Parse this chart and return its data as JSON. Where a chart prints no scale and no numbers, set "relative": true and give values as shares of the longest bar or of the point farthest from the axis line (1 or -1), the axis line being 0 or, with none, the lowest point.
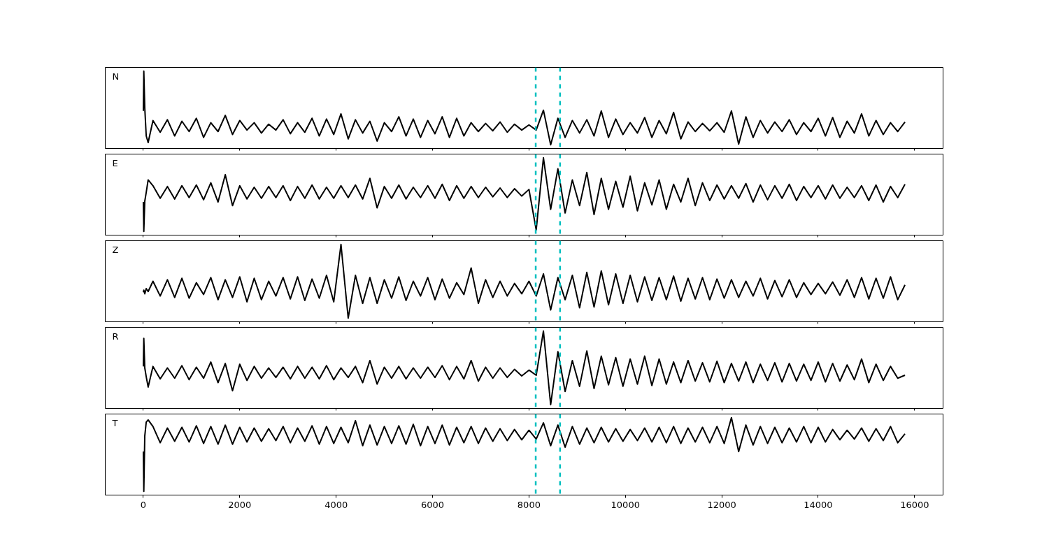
{
  "chart_data": [
    {
      "type": "line",
      "relative": true,
      "annotations": [
        "N"
      ],
      "xlim": [
        -790,
        16590
      ],
      "xticks": [
        0,
        2000,
        4000,
        6000,
        8000,
        10000,
        12000,
        14000,
        16000
      ],
      "tick_labels": false,
      "grid": false,
      "line_style": "solid",
      "ref_lines": [
        {
          "axis": "x",
          "value": 8140,
          "color": "#00bfbf",
          "line_style": "dashed"
        },
        {
          "axis": "x",
          "value": 8645,
          "color": "#00bfbf",
          "line_style": "dashed"
        }
      ],
      "x": [
        0,
        10,
        30,
        60,
        100,
        200,
        350,
        500,
        650,
        800,
        950,
        1100,
        1250,
        1400,
        1550,
        1700,
        1850,
        2000,
        2150,
        2300,
        2450,
        2600,
        2750,
        2900,
        3050,
        3200,
        3350,
        3500,
        3650,
        3800,
        3950,
        4100,
        4250,
        4400,
        4550,
        4700,
        4850,
        5000,
        5150,
        5300,
        5450,
        5600,
        5750,
        5900,
        6050,
        6200,
        6350,
        6500,
        6650,
        6800,
        6950,
        7100,
        7250,
        7400,
        7550,
        7700,
        7850,
        8000,
        8150,
        8300,
        8450,
        8600,
        8750,
        8900,
        9050,
        9200,
        9350,
        9500,
        9650,
        9800,
        9950,
        10100,
        10250,
        10400,
        10550,
        10700,
        10850,
        11000,
        11150,
        11300,
        11450,
        11600,
        11750,
        11900,
        12050,
        12200,
        12350,
        12500,
        12650,
        12800,
        12950,
        13100,
        13250,
        13400,
        13550,
        13700,
        13850,
        14000,
        14150,
        14300,
        14450,
        14600,
        14750,
        14900,
        15050,
        15200,
        15350,
        15500,
        15650,
        15800
      ],
      "series": [
        {
          "color": "#000000",
          "values": [
            0.46,
            1.0,
            0.5,
            0.12,
            0.03,
            0.33,
            0.17,
            0.34,
            0.12,
            0.32,
            0.18,
            0.36,
            0.1,
            0.3,
            0.18,
            0.4,
            0.14,
            0.33,
            0.2,
            0.3,
            0.16,
            0.28,
            0.2,
            0.34,
            0.15,
            0.3,
            0.17,
            0.36,
            0.12,
            0.35,
            0.14,
            0.42,
            0.08,
            0.34,
            0.16,
            0.32,
            0.05,
            0.3,
            0.18,
            0.38,
            0.12,
            0.35,
            0.1,
            0.33,
            0.15,
            0.38,
            0.1,
            0.36,
            0.12,
            0.3,
            0.18,
            0.29,
            0.19,
            0.31,
            0.17,
            0.28,
            0.2,
            0.27,
            0.2,
            0.47,
            0.0,
            0.36,
            0.1,
            0.33,
            0.16,
            0.34,
            0.12,
            0.46,
            0.1,
            0.35,
            0.14,
            0.3,
            0.16,
            0.37,
            0.1,
            0.33,
            0.15,
            0.44,
            0.08,
            0.31,
            0.18,
            0.29,
            0.19,
            0.3,
            0.17,
            0.46,
            0.01,
            0.38,
            0.1,
            0.33,
            0.16,
            0.31,
            0.18,
            0.34,
            0.14,
            0.3,
            0.18,
            0.36,
            0.12,
            0.37,
            0.1,
            0.32,
            0.16,
            0.42,
            0.12,
            0.33,
            0.14,
            0.3,
            0.18,
            0.31
          ]
        }
      ]
    },
    {
      "type": "line",
      "relative": true,
      "annotations": [
        "E"
      ],
      "xlim": [
        -790,
        16590
      ],
      "xticks": [
        0,
        2000,
        4000,
        6000,
        8000,
        10000,
        12000,
        14000,
        16000
      ],
      "tick_labels": false,
      "grid": false,
      "line_style": "solid",
      "ref_lines": [
        {
          "axis": "x",
          "value": 8140,
          "color": "#00bfbf",
          "line_style": "dashed"
        },
        {
          "axis": "x",
          "value": 8645,
          "color": "#00bfbf",
          "line_style": "dashed"
        }
      ],
      "x": [
        0,
        10,
        30,
        60,
        100,
        200,
        350,
        500,
        650,
        800,
        950,
        1100,
        1250,
        1400,
        1550,
        1700,
        1850,
        2000,
        2150,
        2300,
        2450,
        2600,
        2750,
        2900,
        3050,
        3200,
        3350,
        3500,
        3650,
        3800,
        3950,
        4100,
        4250,
        4400,
        4550,
        4700,
        4850,
        5000,
        5150,
        5300,
        5450,
        5600,
        5750,
        5900,
        6050,
        6200,
        6350,
        6500,
        6650,
        6800,
        6950,
        7100,
        7250,
        7400,
        7550,
        7700,
        7850,
        8000,
        8150,
        8300,
        8450,
        8600,
        8750,
        8900,
        9050,
        9200,
        9350,
        9500,
        9650,
        9800,
        9950,
        10100,
        10250,
        10400,
        10550,
        10700,
        10850,
        11000,
        11150,
        11300,
        11450,
        11600,
        11750,
        11900,
        12050,
        12200,
        12350,
        12500,
        12650,
        12800,
        12950,
        13100,
        13250,
        13400,
        13550,
        13700,
        13850,
        14000,
        14150,
        14300,
        14450,
        14600,
        14750,
        14900,
        15050,
        15200,
        15350,
        15500,
        15650,
        15800
      ],
      "series": [
        {
          "color": "#000000",
          "values": [
            0.4,
            0.0,
            0.41,
            0.53,
            0.7,
            0.62,
            0.45,
            0.61,
            0.44,
            0.62,
            0.46,
            0.63,
            0.43,
            0.66,
            0.4,
            0.77,
            0.35,
            0.62,
            0.44,
            0.6,
            0.45,
            0.61,
            0.46,
            0.62,
            0.42,
            0.61,
            0.45,
            0.63,
            0.44,
            0.6,
            0.45,
            0.62,
            0.46,
            0.63,
            0.44,
            0.72,
            0.32,
            0.61,
            0.45,
            0.63,
            0.44,
            0.6,
            0.46,
            0.62,
            0.45,
            0.64,
            0.42,
            0.62,
            0.45,
            0.61,
            0.46,
            0.6,
            0.47,
            0.59,
            0.46,
            0.58,
            0.48,
            0.57,
            0.02,
            1.0,
            0.3,
            0.85,
            0.25,
            0.7,
            0.35,
            0.8,
            0.23,
            0.72,
            0.3,
            0.68,
            0.33,
            0.75,
            0.28,
            0.66,
            0.36,
            0.7,
            0.3,
            0.64,
            0.4,
            0.72,
            0.35,
            0.66,
            0.42,
            0.63,
            0.44,
            0.62,
            0.45,
            0.65,
            0.4,
            0.63,
            0.43,
            0.62,
            0.45,
            0.64,
            0.42,
            0.61,
            0.46,
            0.62,
            0.44,
            0.63,
            0.45,
            0.6,
            0.46,
            0.62,
            0.42,
            0.63,
            0.4,
            0.61,
            0.46,
            0.64
          ]
        }
      ]
    },
    {
      "type": "line",
      "relative": true,
      "annotations": [
        "Z"
      ],
      "xlim": [
        -790,
        16590
      ],
      "xticks": [
        0,
        2000,
        4000,
        6000,
        8000,
        10000,
        12000,
        14000,
        16000
      ],
      "tick_labels": false,
      "grid": false,
      "line_style": "solid",
      "ref_lines": [
        {
          "axis": "x",
          "value": 8140,
          "color": "#00bfbf",
          "line_style": "dashed"
        },
        {
          "axis": "x",
          "value": 8645,
          "color": "#00bfbf",
          "line_style": "dashed"
        }
      ],
      "x": [
        0,
        10,
        30,
        60,
        100,
        200,
        350,
        500,
        650,
        800,
        950,
        1100,
        1250,
        1400,
        1550,
        1700,
        1850,
        2000,
        2150,
        2300,
        2450,
        2600,
        2750,
        2900,
        3050,
        3200,
        3350,
        3500,
        3650,
        3800,
        3950,
        4100,
        4250,
        4400,
        4550,
        4700,
        4850,
        5000,
        5150,
        5300,
        5450,
        5600,
        5750,
        5900,
        6050,
        6200,
        6350,
        6500,
        6650,
        6800,
        6950,
        7100,
        7250,
        7400,
        7550,
        7700,
        7850,
        8000,
        8150,
        8300,
        8450,
        8600,
        8750,
        8900,
        9050,
        9200,
        9350,
        9500,
        9650,
        9800,
        9950,
        10100,
        10250,
        10400,
        10550,
        10700,
        10850,
        11000,
        11150,
        11300,
        11450,
        11600,
        11750,
        11900,
        12050,
        12200,
        12350,
        12500,
        12650,
        12800,
        12950,
        13100,
        13250,
        13400,
        13550,
        13700,
        13850,
        14000,
        14150,
        14300,
        14450,
        14600,
        14750,
        14900,
        15050,
        15200,
        15350,
        15500,
        15650,
        15800
      ],
      "series": [
        {
          "color": "#000000",
          "values": [
            0.35,
            0.38,
            0.33,
            0.4,
            0.36,
            0.5,
            0.3,
            0.52,
            0.28,
            0.54,
            0.27,
            0.48,
            0.32,
            0.55,
            0.25,
            0.52,
            0.28,
            0.56,
            0.22,
            0.54,
            0.25,
            0.5,
            0.3,
            0.55,
            0.26,
            0.56,
            0.24,
            0.53,
            0.27,
            0.58,
            0.22,
            1.0,
            0.0,
            0.58,
            0.2,
            0.55,
            0.2,
            0.52,
            0.27,
            0.56,
            0.24,
            0.5,
            0.3,
            0.55,
            0.25,
            0.53,
            0.27,
            0.48,
            0.32,
            0.68,
            0.2,
            0.52,
            0.28,
            0.5,
            0.3,
            0.47,
            0.33,
            0.5,
            0.3,
            0.6,
            0.11,
            0.55,
            0.25,
            0.58,
            0.14,
            0.62,
            0.15,
            0.64,
            0.18,
            0.6,
            0.2,
            0.58,
            0.22,
            0.56,
            0.24,
            0.55,
            0.25,
            0.57,
            0.23,
            0.54,
            0.26,
            0.55,
            0.25,
            0.53,
            0.27,
            0.52,
            0.28,
            0.5,
            0.3,
            0.54,
            0.26,
            0.51,
            0.29,
            0.52,
            0.28,
            0.48,
            0.32,
            0.47,
            0.33,
            0.49,
            0.31,
            0.52,
            0.28,
            0.55,
            0.26,
            0.54,
            0.27,
            0.56,
            0.25,
            0.45
          ]
        }
      ]
    },
    {
      "type": "line",
      "relative": true,
      "annotations": [
        "R"
      ],
      "xlim": [
        -790,
        16590
      ],
      "xticks": [
        0,
        2000,
        4000,
        6000,
        8000,
        10000,
        12000,
        14000,
        16000
      ],
      "tick_labels": false,
      "grid": false,
      "line_style": "solid",
      "ref_lines": [
        {
          "axis": "x",
          "value": 8140,
          "color": "#00bfbf",
          "line_style": "dashed"
        },
        {
          "axis": "x",
          "value": 8645,
          "color": "#00bfbf",
          "line_style": "dashed"
        }
      ],
      "x": [
        0,
        10,
        30,
        60,
        100,
        200,
        350,
        500,
        650,
        800,
        950,
        1100,
        1250,
        1400,
        1550,
        1700,
        1850,
        2000,
        2150,
        2300,
        2450,
        2600,
        2750,
        2900,
        3050,
        3200,
        3350,
        3500,
        3650,
        3800,
        3950,
        4100,
        4250,
        4400,
        4550,
        4700,
        4850,
        5000,
        5150,
        5300,
        5450,
        5600,
        5750,
        5900,
        6050,
        6200,
        6350,
        6500,
        6650,
        6800,
        6950,
        7100,
        7250,
        7400,
        7550,
        7700,
        7850,
        8000,
        8150,
        8300,
        8450,
        8600,
        8750,
        8900,
        9050,
        9200,
        9350,
        9500,
        9650,
        9800,
        9950,
        10100,
        10250,
        10400,
        10550,
        10700,
        10850,
        11000,
        11150,
        11300,
        11450,
        11600,
        11750,
        11900,
        12050,
        12200,
        12350,
        12500,
        12650,
        12800,
        12950,
        13100,
        13250,
        13400,
        13550,
        13700,
        13850,
        14000,
        14150,
        14300,
        14450,
        14600,
        14750,
        14900,
        15050,
        15200,
        15350,
        15500,
        15650,
        15800
      ],
      "series": [
        {
          "color": "#000000",
          "values": [
            0.52,
            0.9,
            0.5,
            0.38,
            0.24,
            0.52,
            0.35,
            0.5,
            0.36,
            0.53,
            0.34,
            0.51,
            0.36,
            0.58,
            0.3,
            0.56,
            0.19,
            0.55,
            0.33,
            0.52,
            0.36,
            0.5,
            0.37,
            0.51,
            0.35,
            0.52,
            0.36,
            0.51,
            0.35,
            0.53,
            0.34,
            0.5,
            0.37,
            0.52,
            0.3,
            0.6,
            0.28,
            0.51,
            0.36,
            0.52,
            0.35,
            0.5,
            0.36,
            0.51,
            0.37,
            0.53,
            0.34,
            0.52,
            0.35,
            0.6,
            0.32,
            0.51,
            0.36,
            0.5,
            0.37,
            0.48,
            0.39,
            0.47,
            0.4,
            1.0,
            0.0,
            0.72,
            0.18,
            0.6,
            0.25,
            0.73,
            0.22,
            0.66,
            0.27,
            0.64,
            0.25,
            0.62,
            0.28,
            0.66,
            0.26,
            0.62,
            0.28,
            0.58,
            0.3,
            0.6,
            0.32,
            0.57,
            0.31,
            0.59,
            0.3,
            0.56,
            0.32,
            0.58,
            0.3,
            0.55,
            0.33,
            0.57,
            0.31,
            0.56,
            0.32,
            0.55,
            0.33,
            0.58,
            0.31,
            0.56,
            0.32,
            0.54,
            0.34,
            0.62,
            0.3,
            0.55,
            0.33,
            0.52,
            0.36,
            0.4
          ]
        }
      ]
    },
    {
      "type": "line",
      "relative": true,
      "annotations": [
        "T"
      ],
      "xlim": [
        -790,
        16590
      ],
      "xticks": [
        0,
        2000,
        4000,
        6000,
        8000,
        10000,
        12000,
        14000,
        16000
      ],
      "tick_labels": "x",
      "grid": false,
      "line_style": "solid",
      "ref_lines": [
        {
          "axis": "x",
          "value": 8140,
          "color": "#00bfbf",
          "line_style": "dashed"
        },
        {
          "axis": "x",
          "value": 8645,
          "color": "#00bfbf",
          "line_style": "dashed"
        }
      ],
      "x": [
        0,
        10,
        30,
        60,
        100,
        200,
        350,
        500,
        650,
        800,
        950,
        1100,
        1250,
        1400,
        1550,
        1700,
        1850,
        2000,
        2150,
        2300,
        2450,
        2600,
        2750,
        2900,
        3050,
        3200,
        3350,
        3500,
        3650,
        3800,
        3950,
        4100,
        4250,
        4400,
        4550,
        4700,
        4850,
        5000,
        5150,
        5300,
        5450,
        5600,
        5750,
        5900,
        6050,
        6200,
        6350,
        6500,
        6650,
        6800,
        6950,
        7100,
        7250,
        7400,
        7550,
        7700,
        7850,
        8000,
        8150,
        8300,
        8450,
        8600,
        8750,
        8900,
        9050,
        9200,
        9350,
        9500,
        9650,
        9800,
        9950,
        10100,
        10250,
        10400,
        10550,
        10700,
        10850,
        11000,
        11150,
        11300,
        11450,
        11600,
        11750,
        11900,
        12050,
        12200,
        12350,
        12500,
        12650,
        12800,
        12950,
        13100,
        13250,
        13400,
        13550,
        13700,
        13850,
        14000,
        14150,
        14300,
        14450,
        14600,
        14750,
        14900,
        15050,
        15200,
        15350,
        15500,
        15650,
        15800
      ],
      "series": [
        {
          "color": "#000000",
          "values": [
            0.54,
            0.0,
            0.75,
            0.94,
            0.97,
            0.88,
            0.66,
            0.86,
            0.68,
            0.87,
            0.67,
            0.89,
            0.65,
            0.88,
            0.64,
            0.9,
            0.64,
            0.87,
            0.67,
            0.86,
            0.68,
            0.85,
            0.69,
            0.88,
            0.66,
            0.86,
            0.68,
            0.89,
            0.64,
            0.88,
            0.65,
            0.87,
            0.66,
            0.96,
            0.62,
            0.9,
            0.63,
            0.88,
            0.65,
            0.89,
            0.64,
            0.91,
            0.62,
            0.88,
            0.65,
            0.9,
            0.63,
            0.87,
            0.66,
            0.88,
            0.65,
            0.86,
            0.68,
            0.85,
            0.69,
            0.84,
            0.7,
            0.83,
            0.71,
            0.93,
            0.62,
            0.9,
            0.6,
            0.88,
            0.64,
            0.86,
            0.66,
            0.87,
            0.67,
            0.85,
            0.68,
            0.84,
            0.69,
            0.86,
            0.67,
            0.87,
            0.66,
            0.88,
            0.65,
            0.86,
            0.67,
            0.87,
            0.66,
            0.88,
            0.65,
            1.0,
            0.54,
            0.9,
            0.63,
            0.88,
            0.65,
            0.87,
            0.66,
            0.86,
            0.67,
            0.88,
            0.66,
            0.87,
            0.67,
            0.84,
            0.7,
            0.83,
            0.71,
            0.86,
            0.68,
            0.85,
            0.69,
            0.88,
            0.66,
            0.78
          ]
        }
      ]
    }
  ]
}
